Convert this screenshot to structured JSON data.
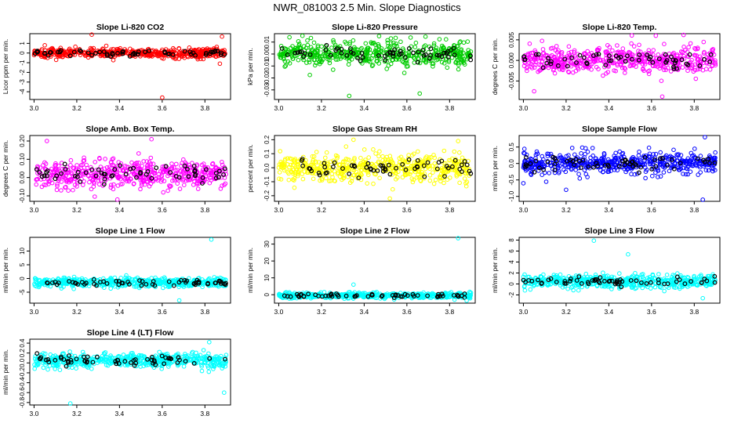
{
  "title": "NWR_081003  2.5 Min. Slope Diagnostics",
  "colors": {
    "red": "#ff0000",
    "green": "#00cc00",
    "magenta": "#ff00ff",
    "yellow": "#ffff00",
    "blue": "#0000ff",
    "cyan": "#00ffff",
    "black": "#000000"
  },
  "chart_data": [
    {
      "type": "scatter",
      "title": "Slope Li-820 CO2",
      "ylabel": "Licor ppm per min.",
      "color": "#ff0000",
      "xlim": [
        2.98,
        3.92
      ],
      "ylim": [
        -4.8,
        2.0
      ],
      "x_ticks": [
        "3.0",
        "3.2",
        "3.4",
        "3.6",
        "3.8"
      ],
      "y_ticks": [
        {
          "v": -4,
          "l": "-4"
        },
        {
          "v": -3,
          "l": "-3"
        },
        {
          "v": -2,
          "l": "-2"
        },
        {
          "v": -1,
          "l": "-1"
        },
        {
          "v": 0,
          "l": "0"
        },
        {
          "v": 1,
          "l": "1"
        }
      ],
      "center": 0.0,
      "spread": 0.45,
      "outliers": [
        {
          "x": 3.27,
          "y": 1.9
        },
        {
          "x": 3.6,
          "y": -4.6
        },
        {
          "x": 3.88,
          "y": 1.7
        },
        {
          "x": 3.05,
          "y": 0.8
        },
        {
          "x": 3.87,
          "y": -1.1
        }
      ]
    },
    {
      "type": "scatter",
      "title": "Slope Li-820 Pressure",
      "ylabel": "kPa per min.",
      "color": "#00cc00",
      "xlim": [
        2.98,
        3.92
      ],
      "ylim": [
        -0.038,
        0.017
      ],
      "x_ticks": [
        "3.0",
        "3.2",
        "3.4",
        "3.6",
        "3.8"
      ],
      "y_ticks": [
        {
          "v": -0.03,
          "l": "-0.03"
        },
        {
          "v": -0.02,
          "l": "-0.02"
        },
        {
          "v": -0.01,
          "l": "-0.01"
        },
        {
          "v": 0,
          "l": "0.00"
        },
        {
          "v": 0.01,
          "l": "0.01"
        }
      ],
      "center": 0.0,
      "spread": 0.009,
      "outliers": [
        {
          "x": 3.33,
          "y": -0.035
        },
        {
          "x": 3.66,
          "y": -0.033
        },
        {
          "x": 3.05,
          "y": 0.014
        },
        {
          "x": 3.47,
          "y": 0.015
        }
      ]
    },
    {
      "type": "scatter",
      "title": "Slope Li-820 Temp.",
      "ylabel": "degrees C per min.",
      "color": "#ff00ff",
      "xlim": [
        2.98,
        3.92
      ],
      "ylim": [
        -0.0095,
        0.0065
      ],
      "x_ticks": [
        "3.0",
        "3.2",
        "3.4",
        "3.6",
        "3.8"
      ],
      "y_ticks": [
        {
          "v": -0.005,
          "l": "-0.005"
        },
        {
          "v": 0,
          "l": "0.000"
        },
        {
          "v": 0.005,
          "l": "0.005"
        }
      ],
      "center": 0.0,
      "spread": 0.003,
      "outliers": [
        {
          "x": 3.65,
          "y": -0.0088
        },
        {
          "x": 3.75,
          "y": 0.0062
        },
        {
          "x": 3.05,
          "y": -0.0075
        },
        {
          "x": 3.62,
          "y": 0.006
        }
      ]
    },
    {
      "type": "scatter",
      "title": "Slope Amb. Box Temp.",
      "ylabel": "degrees C per min.",
      "color": "#ff00ff",
      "xlim": [
        2.98,
        3.92
      ],
      "ylim": [
        -0.13,
        0.23
      ],
      "x_ticks": [
        "3.0",
        "3.2",
        "3.4",
        "3.6",
        "3.8"
      ],
      "y_ticks": [
        {
          "v": -0.1,
          "l": "-0.10"
        },
        {
          "v": 0,
          "l": "0.00"
        },
        {
          "v": 0.1,
          "l": "0.10"
        },
        {
          "v": 0.2,
          "l": "0.20"
        }
      ],
      "center": 0.02,
      "spread": 0.07,
      "outliers": [
        {
          "x": 3.55,
          "y": 0.21
        },
        {
          "x": 3.39,
          "y": -0.12
        },
        {
          "x": 3.06,
          "y": 0.2
        }
      ]
    },
    {
      "type": "scatter",
      "title": "Slope Gas Stream RH",
      "ylabel": "percent per min.",
      "color": "#ffff00",
      "xlim": [
        2.98,
        3.92
      ],
      "ylim": [
        -0.24,
        0.23
      ],
      "x_ticks": [
        "3.0",
        "3.2",
        "3.4",
        "3.6",
        "3.8"
      ],
      "y_ticks": [
        {
          "v": -0.2,
          "l": "-0.2"
        },
        {
          "v": -0.1,
          "l": "-0.1"
        },
        {
          "v": 0,
          "l": "0.0"
        },
        {
          "v": 0.1,
          "l": "0.1"
        },
        {
          "v": 0.2,
          "l": "0.2"
        }
      ],
      "center": 0.0,
      "spread": 0.09,
      "outliers": [
        {
          "x": 3.52,
          "y": -0.22
        },
        {
          "x": 3.35,
          "y": 0.2
        },
        {
          "x": 3.84,
          "y": 0.19
        }
      ]
    },
    {
      "type": "scatter",
      "title": "Slope Sample Flow",
      "ylabel": "ml/min per min.",
      "color": "#0000ff",
      "xlim": [
        2.98,
        3.92
      ],
      "ylim": [
        -1.15,
        0.85
      ],
      "x_ticks": [
        "3.0",
        "3.2",
        "3.4",
        "3.6",
        "3.8"
      ],
      "y_ticks": [
        {
          "v": -1.0,
          "l": "-1.0"
        },
        {
          "v": -0.5,
          "l": "-0.5"
        },
        {
          "v": 0,
          "l": "0.0"
        },
        {
          "v": 0.5,
          "l": "0.5"
        }
      ],
      "center": 0.0,
      "spread": 0.3,
      "outliers": [
        {
          "x": 3.84,
          "y": -1.1
        },
        {
          "x": 3.85,
          "y": 0.8
        },
        {
          "x": 3.0,
          "y": -0.6
        },
        {
          "x": 3.2,
          "y": -0.8
        }
      ]
    },
    {
      "type": "scatter",
      "title": "Slope Line 1 Flow",
      "ylabel": "ml/min per min.",
      "color": "#00ffff",
      "xlim": [
        2.98,
        3.92
      ],
      "ylim": [
        -9,
        15
      ],
      "x_ticks": [
        "3.0",
        "3.2",
        "3.4",
        "3.6",
        "3.8"
      ],
      "y_ticks": [
        {
          "v": -5,
          "l": "-5"
        },
        {
          "v": 0,
          "l": "0"
        },
        {
          "v": 5,
          "l": "5"
        },
        {
          "v": 10,
          "l": "10"
        }
      ],
      "center": -1.5,
      "spread": 1.5,
      "outliers": [
        {
          "x": 3.83,
          "y": 14.2
        },
        {
          "x": 3.68,
          "y": -8.0
        }
      ]
    },
    {
      "type": "scatter",
      "title": "Slope Line 2 Flow",
      "ylabel": "ml/min per min.",
      "color": "#00ffff",
      "xlim": [
        2.98,
        3.92
      ],
      "ylim": [
        -5,
        34
      ],
      "x_ticks": [
        "3.0",
        "3.2",
        "3.4",
        "3.6",
        "3.8"
      ],
      "y_ticks": [
        {
          "v": 0,
          "l": "0"
        },
        {
          "v": 10,
          "l": "10"
        },
        {
          "v": 20,
          "l": "20"
        },
        {
          "v": 30,
          "l": "30"
        }
      ],
      "center": -0.5,
      "spread": 1.5,
      "outliers": [
        {
          "x": 3.84,
          "y": 33.5
        },
        {
          "x": 3.35,
          "y": 6.0
        },
        {
          "x": 3.88,
          "y": -3.5
        }
      ]
    },
    {
      "type": "scatter",
      "title": "Slope Line 3 Flow",
      "ylabel": "ml/min per min.",
      "color": "#00ffff",
      "xlim": [
        2.98,
        3.92
      ],
      "ylim": [
        -3.5,
        8.5
      ],
      "x_ticks": [
        "3.0",
        "3.2",
        "3.4",
        "3.6",
        "3.8"
      ],
      "y_ticks": [
        {
          "v": -2,
          "l": "-2"
        },
        {
          "v": 0,
          "l": "0"
        },
        {
          "v": 2,
          "l": "2"
        },
        {
          "v": 4,
          "l": "4"
        },
        {
          "v": 6,
          "l": "6"
        },
        {
          "v": 8,
          "l": "8"
        }
      ],
      "center": 0.5,
      "spread": 1.1,
      "outliers": [
        {
          "x": 3.33,
          "y": 7.9
        },
        {
          "x": 3.49,
          "y": 5.4
        },
        {
          "x": 3.84,
          "y": -2.6
        }
      ]
    },
    {
      "type": "scatter",
      "title": "Slope Line 4 (LT) Flow",
      "ylabel": "ml/min per min.",
      "color": "#00ffff",
      "xlim": [
        2.98,
        3.92
      ],
      "ylim": [
        -0.85,
        0.48
      ],
      "x_ticks": [
        "3.0",
        "3.2",
        "3.4",
        "3.6",
        "3.8"
      ],
      "y_ticks": [
        {
          "v": -0.8,
          "l": "-0.8"
        },
        {
          "v": -0.6,
          "l": "-0.6"
        },
        {
          "v": -0.4,
          "l": "-0.4"
        },
        {
          "v": -0.2,
          "l": "-0.2"
        },
        {
          "v": 0,
          "l": "0.0"
        },
        {
          "v": 0.2,
          "l": "0.2"
        },
        {
          "v": 0.4,
          "l": "0.4"
        }
      ],
      "center": 0.05,
      "spread": 0.13,
      "outliers": [
        {
          "x": 3.17,
          "y": -0.82
        },
        {
          "x": 3.82,
          "y": 0.42
        },
        {
          "x": 3.89,
          "y": -0.6
        }
      ]
    }
  ]
}
